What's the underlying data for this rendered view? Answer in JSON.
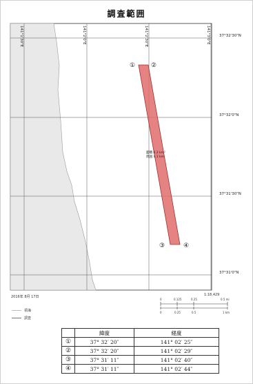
{
  "title": "調査範囲",
  "map": {
    "lon_labels": [
      "141°1'30\"E",
      "141°2'0\"E",
      "141°2'30\"E",
      "141°3'0\"E"
    ],
    "lat_labels": [
      "37°32'30\"N",
      "37°32'0\"N",
      "37°31'30\"N",
      "37°31'0\"N"
    ],
    "area_label_line1": "面積 0.2 km²",
    "area_label_line2": "周囲 4.1 km",
    "points": [
      {
        "label": "①",
        "lat": "37°32'20\"N",
        "lon": "141°2'25\"E"
      },
      {
        "label": "②",
        "lat": "37°32'20\"N",
        "lon": "141°2'29\"E"
      },
      {
        "label": "③",
        "lat": "37°31'11\"N",
        "lon": "141°2'40\"E"
      },
      {
        "label": "④",
        "lat": "37°31'11\"N",
        "lon": "141°2'44\"E"
      }
    ],
    "fill_color": "#e06c6c",
    "land_color": "#e9e9e9",
    "sea_color": "#ffffff"
  },
  "date": "2016年 8月 17日",
  "scale": {
    "ratio": "1:18,429",
    "upper_ticks": [
      "0",
      "0.125",
      "0.25",
      "0.5 mi"
    ],
    "lower_ticks": [
      "0",
      "0.25",
      "0.5",
      "1 km"
    ]
  },
  "legend": [
    {
      "label": "領海",
      "style": "light"
    },
    {
      "label": "調査",
      "style": "dark"
    }
  ],
  "table": {
    "headers": [
      "",
      "緯度",
      "経度"
    ],
    "rows": [
      [
        "①",
        "37° 32′ 20″",
        "141° 02′ 25″"
      ],
      [
        "②",
        "37° 32′ 20″",
        "141° 02′ 29″"
      ],
      [
        "③",
        "37° 31′ 11″",
        "141° 02′ 40″"
      ],
      [
        "④",
        "37° 31′ 11″",
        "141° 02′ 44″"
      ]
    ]
  }
}
